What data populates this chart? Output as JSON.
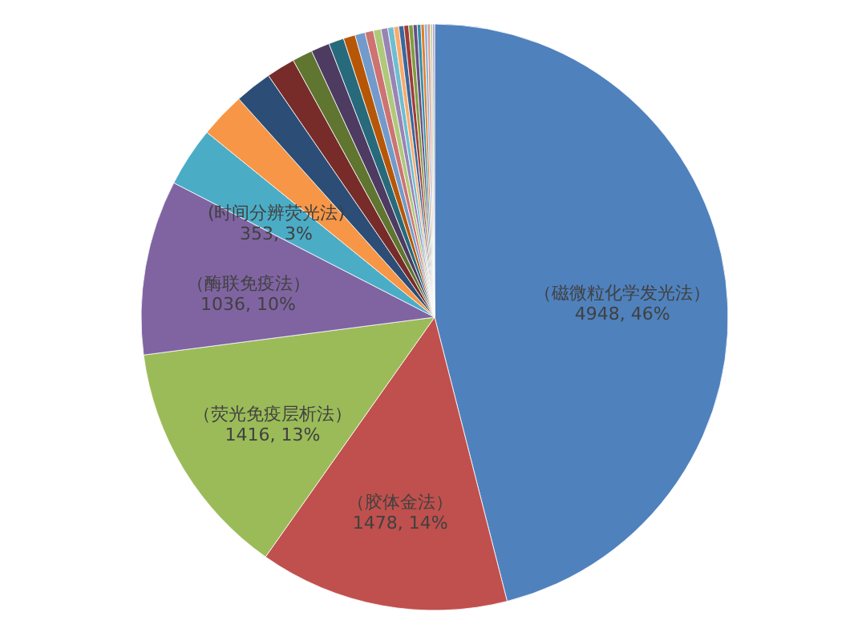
{
  "chart_data": {
    "type": "pie",
    "categories": [
      "（磁微粒化学发光法）",
      "（胶体金法）",
      "（荧光免疫层析法）",
      "（酶联免疫法）",
      "(时间分辨荧光法)",
      null,
      null,
      null,
      null,
      null,
      null,
      null,
      null,
      null,
      null,
      null,
      null,
      null,
      null,
      null,
      null,
      null,
      null,
      null,
      null,
      null,
      null,
      null
    ],
    "values": [
      4948,
      1478,
      1416,
      1036,
      353,
      270,
      220,
      170,
      120,
      110,
      90,
      70,
      60,
      50,
      45,
      40,
      35,
      30,
      30,
      28,
      26,
      24,
      22,
      20,
      18,
      16,
      14,
      12
    ],
    "value_labels": [
      "4948, 46%",
      "1478, 14%",
      "1416, 13%",
      "1036, 10%",
      "353, 3%",
      null,
      null,
      null,
      null,
      null,
      null,
      null,
      null,
      null,
      null,
      null,
      null,
      null,
      null,
      null,
      null,
      null,
      null,
      null,
      null,
      null,
      null,
      null
    ],
    "colors": [
      "#4f81bd",
      "#c0504d",
      "#9bbb59",
      "#8064a2",
      "#4bacc6",
      "#f79646",
      "#2c4d75",
      "#772c2a",
      "#5f7530",
      "#4d3b62",
      "#276a7c",
      "#b65708",
      "#729aca",
      "#cd7371",
      "#afc97a",
      "#9983b5",
      "#6fbdd1",
      "#f9ab6b",
      "#3a679c",
      "#9f3b38",
      "#7f9c40",
      "#664f83",
      "#358ea6",
      "#dd7f2f",
      "#95b3d7",
      "#d99694",
      "#c3d69b",
      "#b3a2c7"
    ],
    "legend": false
  }
}
